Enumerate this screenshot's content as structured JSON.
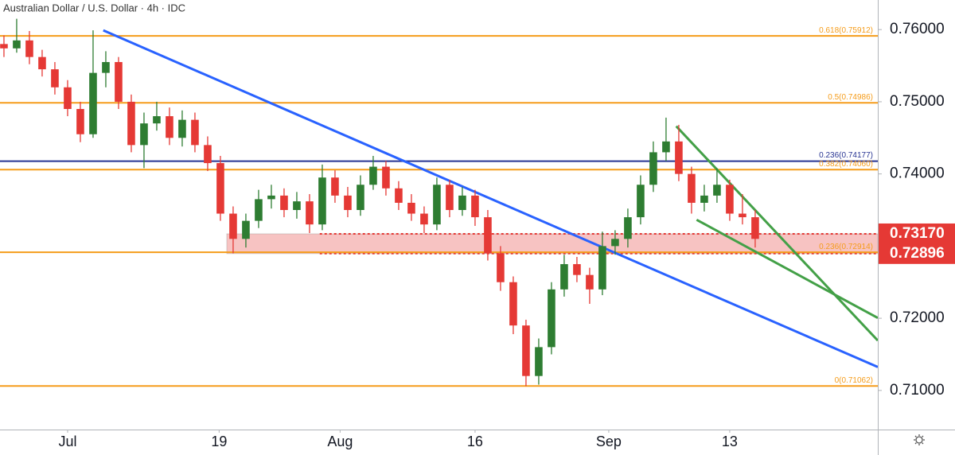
{
  "chart_data": {
    "type": "candlestick",
    "title": "Australian Dollar / U.S. Dollar · 4h · IDC",
    "x": [
      -5,
      -4,
      -3,
      -2,
      -1,
      0,
      1,
      2,
      3,
      4,
      5,
      6,
      7,
      8,
      9,
      10,
      11,
      12,
      13,
      14,
      15,
      16,
      17,
      18,
      19,
      20,
      21,
      22,
      23,
      24,
      25,
      26,
      27,
      28,
      29,
      30,
      31,
      32,
      33,
      34,
      35,
      36,
      37,
      38,
      39,
      40,
      41,
      42,
      43,
      44,
      45,
      46,
      47,
      48,
      49,
      50,
      51,
      52,
      53,
      54
    ],
    "open": [
      0.758,
      0.7574,
      0.7585,
      0.7562,
      0.7545,
      0.752,
      0.749,
      0.7455,
      0.754,
      0.7555,
      0.75,
      0.744,
      0.747,
      0.748,
      0.745,
      0.7475,
      0.744,
      0.7415,
      0.7345,
      0.731,
      0.7335,
      0.7365,
      0.737,
      0.735,
      0.7362,
      0.733,
      0.7395,
      0.737,
      0.735,
      0.7385,
      0.741,
      0.738,
      0.736,
      0.7345,
      0.733,
      0.7385,
      0.735,
      0.737,
      0.734,
      0.729,
      0.725,
      0.719,
      0.712,
      0.716,
      0.724,
      0.7275,
      0.726,
      0.724,
      0.73,
      0.731,
      0.734,
      0.7385,
      0.743,
      0.7445,
      0.74,
      0.736,
      0.737,
      0.7385,
      0.7345,
      0.734
    ],
    "high": [
      0.7592,
      0.7615,
      0.7598,
      0.7572,
      0.7555,
      0.753,
      0.75,
      0.7599,
      0.757,
      0.7562,
      0.751,
      0.7485,
      0.75,
      0.7492,
      0.7488,
      0.7485,
      0.7452,
      0.7425,
      0.7355,
      0.7345,
      0.7378,
      0.7385,
      0.738,
      0.7375,
      0.7372,
      0.7413,
      0.7405,
      0.7382,
      0.7398,
      0.7425,
      0.7418,
      0.739,
      0.7372,
      0.7355,
      0.7395,
      0.7392,
      0.7382,
      0.7378,
      0.735,
      0.73,
      0.7258,
      0.7198,
      0.7172,
      0.725,
      0.7288,
      0.7285,
      0.727,
      0.732,
      0.7322,
      0.7352,
      0.7398,
      0.7445,
      0.7478,
      0.7468,
      0.741,
      0.7385,
      0.7408,
      0.7392,
      0.7372,
      0.735
    ],
    "low": [
      0.7562,
      0.7568,
      0.7552,
      0.7535,
      0.751,
      0.748,
      0.7444,
      0.745,
      0.752,
      0.749,
      0.743,
      0.7408,
      0.746,
      0.744,
      0.7438,
      0.743,
      0.7404,
      0.7335,
      0.729,
      0.7298,
      0.7325,
      0.7352,
      0.734,
      0.7338,
      0.7318,
      0.7322,
      0.736,
      0.734,
      0.7342,
      0.7378,
      0.737,
      0.735,
      0.7335,
      0.7318,
      0.7322,
      0.734,
      0.7342,
      0.7328,
      0.728,
      0.7238,
      0.7178,
      0.7106,
      0.7108,
      0.715,
      0.723,
      0.725,
      0.722,
      0.7232,
      0.7288,
      0.7298,
      0.733,
      0.7375,
      0.7418,
      0.739,
      0.7345,
      0.7348,
      0.736,
      0.7335,
      0.733,
      0.7298
    ],
    "close": [
      0.7574,
      0.7585,
      0.7562,
      0.7545,
      0.752,
      0.749,
      0.7455,
      0.754,
      0.7555,
      0.75,
      0.744,
      0.747,
      0.748,
      0.745,
      0.7475,
      0.744,
      0.7415,
      0.7345,
      0.731,
      0.7335,
      0.7365,
      0.737,
      0.735,
      0.7362,
      0.733,
      0.7395,
      0.737,
      0.735,
      0.7385,
      0.741,
      0.738,
      0.736,
      0.7345,
      0.733,
      0.7385,
      0.735,
      0.737,
      0.734,
      0.729,
      0.725,
      0.719,
      0.712,
      0.716,
      0.724,
      0.7275,
      0.726,
      0.724,
      0.73,
      0.731,
      0.734,
      0.7385,
      0.743,
      0.7445,
      0.74,
      0.736,
      0.737,
      0.7385,
      0.7345,
      0.734,
      0.731
    ],
    "up_color": "#2e7d32",
    "down_color": "#e53935",
    "xlim": [
      -5.31,
      63.63
    ],
    "xticks": [
      {
        "value": 0,
        "label": "Jul"
      },
      {
        "value": 11.9,
        "label": "19"
      },
      {
        "value": 21.4,
        "label": "Aug"
      },
      {
        "value": 32,
        "label": "16"
      },
      {
        "value": 42.5,
        "label": "Sep"
      },
      {
        "value": 52,
        "label": "13"
      }
    ],
    "ylim": [
      0.70458,
      0.7641
    ],
    "yticks": [
      {
        "value": 0.71,
        "label": "0.71000"
      },
      {
        "value": 0.72,
        "label": "0.72000"
      },
      {
        "value": 0.73,
        "label": "0.73000"
      },
      {
        "value": 0.74,
        "label": "0.74000"
      },
      {
        "value": 0.75,
        "label": "0.75000"
      },
      {
        "value": 0.76,
        "label": "0.76000"
      }
    ],
    "levels": [
      {
        "label": "0.618(0.75912)",
        "value": 0.75912,
        "color": "#f59c1a"
      },
      {
        "label": "0.5(0.74986)",
        "value": 0.74986,
        "color": "#f59c1a"
      },
      {
        "label": "0.236(0.74177)",
        "value": 0.74177,
        "color": "#283593"
      },
      {
        "label": "0.382(0.74060)",
        "value": 0.7406,
        "color": "#f59c1a"
      },
      {
        "label": "0.236(0.72914)",
        "value": 0.72914,
        "color": "#f59c1a"
      },
      {
        "label": "0(0.71062)",
        "value": 0.71062,
        "color": "#f59c1a"
      }
    ],
    "zone": {
      "values": [
        0.7317,
        0.72896
      ],
      "value_labels": [
        "0.73170",
        "0.72896"
      ],
      "start": 12.5,
      "color": "#e53935"
    },
    "trendlines": [
      {
        "x": [
          2.8,
          63.63
        ],
        "y": [
          0.7599,
          0.71324
        ],
        "color": "#2962ff"
      },
      {
        "x": [
          47.8,
          63.63
        ],
        "y": [
          0.74661,
          0.71691
        ],
        "color": "#43a047"
      },
      {
        "x": [
          49.4,
          63.63
        ],
        "y": [
          0.73365,
          0.72004
        ],
        "color": "#43a047"
      }
    ]
  }
}
